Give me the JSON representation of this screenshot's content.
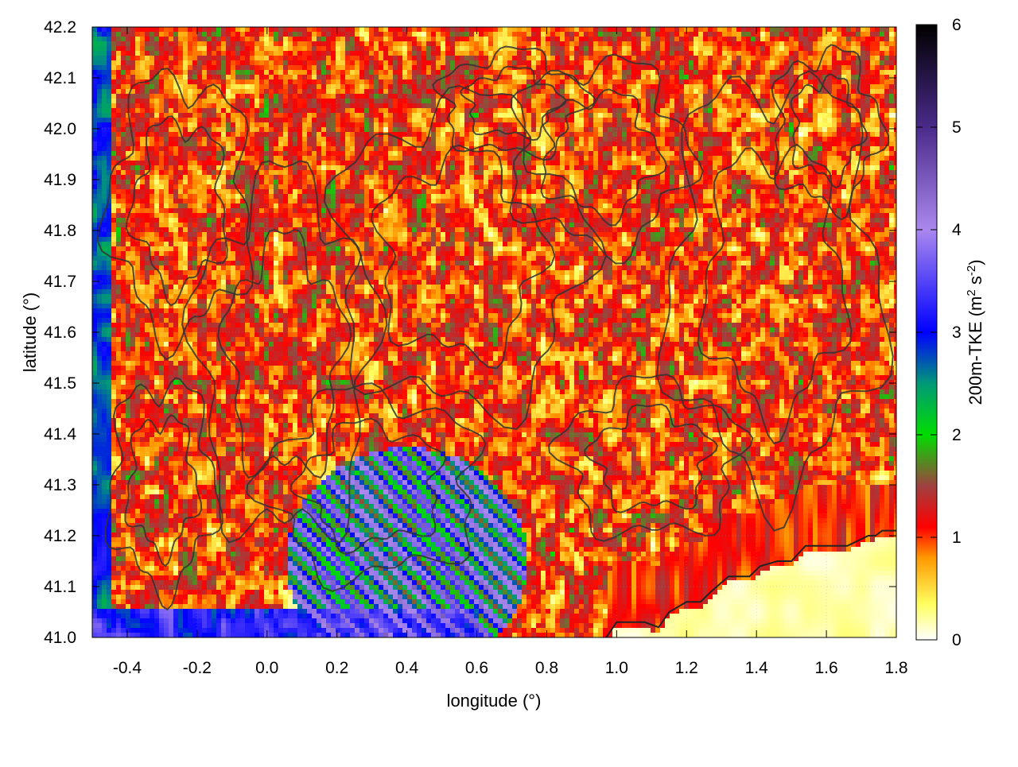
{
  "chart_data": {
    "type": "heatmap",
    "xlabel": "longitude (°)",
    "ylabel": "latitude (°)",
    "xlim": [
      -0.5,
      1.8
    ],
    "ylim": [
      41.0,
      42.2
    ],
    "x_ticks": [
      -0.4,
      -0.2,
      0.0,
      0.2,
      0.4,
      0.6,
      0.8,
      1.0,
      1.2,
      1.4,
      1.6,
      1.8
    ],
    "x_tick_labels": [
      "-0.4",
      "-0.2",
      "0.0",
      "0.2",
      "0.4",
      "0.6",
      "0.8",
      "1.0",
      "1.2",
      "1.4",
      "1.6",
      "1.8"
    ],
    "y_ticks": [
      41.0,
      41.1,
      41.2,
      41.3,
      41.4,
      41.5,
      41.6,
      41.7,
      41.8,
      41.9,
      42.0,
      42.1,
      42.2
    ],
    "y_tick_labels": [
      "41.0",
      "41.1",
      "41.2",
      "41.3",
      "41.4",
      "41.5",
      "41.6",
      "41.7",
      "41.8",
      "41.9",
      "42.0",
      "42.1",
      "42.2"
    ],
    "grid": true,
    "colorbar": {
      "label_main": "200m-TKE (m",
      "label_sup1": "2",
      "label_mid": " s",
      "label_sup2": "-2",
      "label_end": ")",
      "range": [
        0,
        6
      ],
      "ticks": [
        0,
        1,
        2,
        3,
        4,
        5,
        6
      ],
      "tick_labels": [
        "0",
        "1",
        "2",
        "3",
        "4",
        "5",
        "6"
      ],
      "palette": [
        {
          "v": 0.0,
          "color": "#ffffff"
        },
        {
          "v": 0.35,
          "color": "#ffff60"
        },
        {
          "v": 0.8,
          "color": "#ff9900"
        },
        {
          "v": 1.1,
          "color": "#ff0000"
        },
        {
          "v": 1.5,
          "color": "#a04040"
        },
        {
          "v": 2.0,
          "color": "#00dd00"
        },
        {
          "v": 2.5,
          "color": "#009977"
        },
        {
          "v": 3.0,
          "color": "#0000ff"
        },
        {
          "v": 4.0,
          "color": "#aa88ee"
        },
        {
          "v": 5.0,
          "color": "#4a2a8a"
        },
        {
          "v": 6.0,
          "color": "#000000"
        }
      ]
    },
    "features": {
      "sea_region_sw_corner": [
        0.9,
        41.0
      ],
      "coastline": [
        [
          0.97,
          41.0
        ],
        [
          1.0,
          41.03
        ],
        [
          1.08,
          41.03
        ],
        [
          1.12,
          41.02
        ],
        [
          1.15,
          41.05
        ],
        [
          1.2,
          41.07
        ],
        [
          1.24,
          41.07
        ],
        [
          1.27,
          41.09
        ],
        [
          1.32,
          41.12
        ],
        [
          1.38,
          41.12
        ],
        [
          1.41,
          41.14
        ],
        [
          1.46,
          41.15
        ],
        [
          1.5,
          41.15
        ],
        [
          1.54,
          41.18
        ],
        [
          1.6,
          41.18
        ],
        [
          1.66,
          41.18
        ],
        [
          1.72,
          41.2
        ],
        [
          1.74,
          41.2
        ],
        [
          1.76,
          41.21
        ],
        [
          1.8,
          41.21
        ]
      ]
    }
  }
}
